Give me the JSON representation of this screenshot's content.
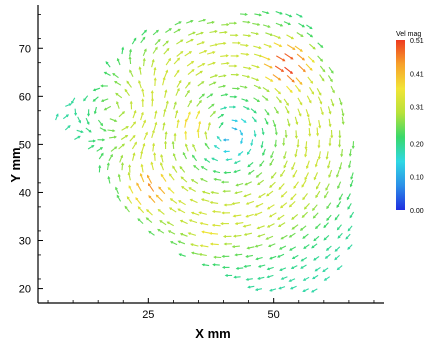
{
  "chart_data": {
    "type": "vector-field",
    "title": "",
    "xlabel": "X mm",
    "ylabel": "Y mm",
    "xlim": [
      3,
      72
    ],
    "ylim": [
      17,
      79
    ],
    "x_ticks": [
      25,
      50
    ],
    "x_tick_labels": [
      "25",
      "50"
    ],
    "y_ticks": [
      20,
      30,
      40,
      50,
      60,
      70
    ],
    "y_tick_labels": [
      "20",
      "30",
      "40",
      "50",
      "60",
      "70"
    ],
    "grid": false,
    "colorbar": {
      "title": "Vel mag",
      "ticks": [
        0.51,
        0.41,
        0.31,
        0.2,
        0.1,
        0.0
      ],
      "tick_labels": [
        "0.51",
        "0.41",
        "0.31",
        "0.20",
        "0.10",
        "0.00"
      ],
      "range": [
        0.0,
        0.51
      ],
      "colors": [
        "#1f2ee0",
        "#2c8fe8",
        "#2fd8e4",
        "#39d86a",
        "#b8e23a",
        "#f2e436",
        "#f7a12a",
        "#ee3a1f"
      ]
    },
    "field": {
      "grid_spacing_mm": 2.2,
      "primary_vortex": {
        "x": 41,
        "y": 52,
        "radius": 28,
        "circulation": "clockwise",
        "peak_speed": 0.5
      },
      "secondary_vortex": {
        "x": 18,
        "y": 57,
        "radius": 8,
        "circulation": "counter-clockwise",
        "peak_speed": 0.3
      },
      "high_speed_regions": [
        {
          "x": 52,
          "y": 67,
          "speed": 0.51
        },
        {
          "x": 26,
          "y": 40,
          "speed": 0.45
        },
        {
          "x": 34,
          "y": 53,
          "speed": 0.4
        },
        {
          "x": 38,
          "y": 31,
          "speed": 0.36
        }
      ],
      "domain_outline": [
        [
          5,
          56
        ],
        [
          10,
          60
        ],
        [
          16,
          64
        ],
        [
          21,
          72
        ],
        [
          29,
          75
        ],
        [
          40,
          77
        ],
        [
          47,
          79
        ],
        [
          54,
          79
        ],
        [
          60,
          71
        ],
        [
          63,
          62
        ],
        [
          66,
          52
        ],
        [
          66,
          40
        ],
        [
          66,
          30
        ],
        [
          64,
          24
        ],
        [
          58,
          19
        ],
        [
          48,
          19
        ],
        [
          40,
          22
        ],
        [
          33,
          25
        ],
        [
          27,
          30
        ],
        [
          22,
          35
        ],
        [
          16,
          42
        ],
        [
          10,
          50
        ]
      ]
    }
  }
}
